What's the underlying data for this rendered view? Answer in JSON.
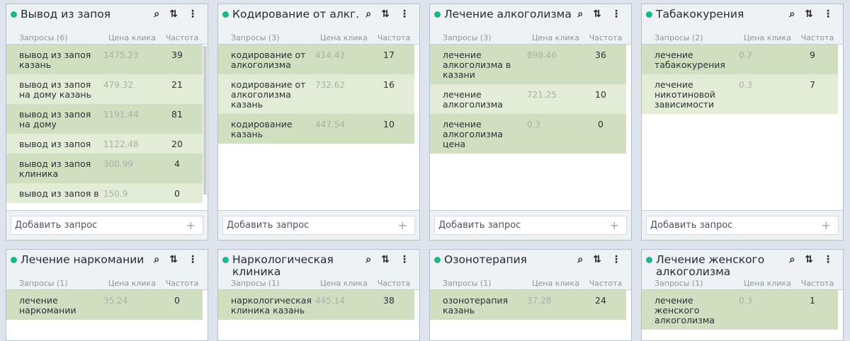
{
  "columns": {
    "price": "Цена клика",
    "freq": "Частота"
  },
  "add_label": "Добавить запрос",
  "icons": [
    "search-icon",
    "sort-icon",
    "more-vertical-icon"
  ],
  "colors": {
    "status_dot": "#1fb58a",
    "row_dark": "#cfdfc0",
    "row_light": "#e2ecd6"
  },
  "groups": [
    {
      "title": "Вывод из запоя",
      "count_label": "Запросы (6)",
      "rows": [
        {
          "q": "вывод из запоя казань",
          "p": "1475.23",
          "f": "39"
        },
        {
          "q": "вывод из запоя на дому казань",
          "p": "479.32",
          "f": "21"
        },
        {
          "q": "вывод из запоя на дому",
          "p": "1191.44",
          "f": "81"
        },
        {
          "q": "вывод из запоя",
          "p": "1122.48",
          "f": "20"
        },
        {
          "q": "вывод из запоя клиника",
          "p": "300.99",
          "f": "4"
        },
        {
          "q": "вывод из запоя в",
          "p": "150.9",
          "f": "0"
        }
      ]
    },
    {
      "title": "Кодирование от алкг.",
      "count_label": "Запросы (3)",
      "rows": [
        {
          "q": "кодирование от алкоголизма",
          "p": "414.43",
          "f": "17"
        },
        {
          "q": "кодирование от алкоголизма казань",
          "p": "732.62",
          "f": "16"
        },
        {
          "q": "кодирование казань",
          "p": "447.54",
          "f": "10"
        }
      ]
    },
    {
      "title": "Лечение алкоголизма",
      "count_label": "Запросы (3)",
      "rows": [
        {
          "q": "лечение алкоголизма в казани",
          "p": "898.46",
          "f": "36"
        },
        {
          "q": "лечение алкоголизма",
          "p": "721.25",
          "f": "10"
        },
        {
          "q": "лечение алкоголизма цена",
          "p": "0.3",
          "f": "0"
        }
      ]
    },
    {
      "title": "Табакокурения",
      "count_label": "Запросы (2)",
      "rows": [
        {
          "q": "лечение табакокурения",
          "p": "0.7",
          "f": "9"
        },
        {
          "q": "лечение никотиновой зависимости",
          "p": "0.3",
          "f": "7"
        }
      ]
    },
    {
      "title": "Лечение наркомании",
      "count_label": "Запросы (1)",
      "rows": [
        {
          "q": "лечение наркомании",
          "p": "35.24",
          "f": "0"
        }
      ]
    },
    {
      "title": "Наркологическая клиника",
      "count_label": "Запросы (1)",
      "rows": [
        {
          "q": "наркологическая клиника казань",
          "p": "445.14",
          "f": "38"
        }
      ]
    },
    {
      "title": "Озонотерапия",
      "count_label": "Запросы (1)",
      "rows": [
        {
          "q": "озонотерапия казань",
          "p": "37.28",
          "f": "24"
        }
      ]
    },
    {
      "title": "Лечение женского алкоголизма",
      "count_label": "Запросы (1)",
      "rows": [
        {
          "q": "лечение женского алкоголизма",
          "p": "0.3",
          "f": "1"
        }
      ]
    }
  ]
}
